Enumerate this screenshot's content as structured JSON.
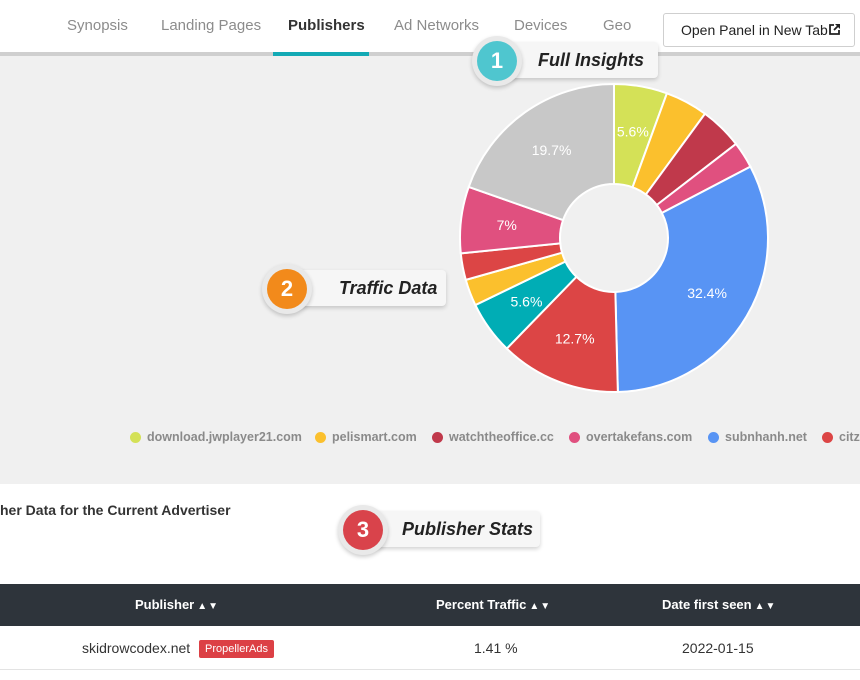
{
  "nav": {
    "tabs": [
      {
        "label": "Synopsis",
        "active": false
      },
      {
        "label": "Landing Pages",
        "active": false
      },
      {
        "label": "Publishers",
        "active": true
      },
      {
        "label": "Ad Networks",
        "active": false
      },
      {
        "label": "Devices",
        "active": false
      },
      {
        "label": "Geo",
        "active": false
      }
    ],
    "open_panel_label": "Open Panel in New Tab",
    "accent_color": "#13aab5"
  },
  "callouts": [
    {
      "number": "1",
      "label": "Full Insights",
      "color": "#4fc6cf"
    },
    {
      "number": "2",
      "label": "Traffic Data",
      "color": "#f28a1b"
    },
    {
      "number": "3",
      "label": "Publisher Stats",
      "color": "#d9434b"
    }
  ],
  "chart_data": {
    "type": "pie",
    "donut": true,
    "slices": [
      {
        "value": 5.6,
        "label": "5.6%",
        "color": "#d4e157"
      },
      {
        "value": 4.5,
        "label": "",
        "color": "#fbc02d"
      },
      {
        "value": 4.5,
        "label": "",
        "color": "#c0394b"
      },
      {
        "value": 2.8,
        "label": "",
        "color": "#e0507f"
      },
      {
        "value": 32.4,
        "label": "32.4%",
        "color": "#5894f4"
      },
      {
        "value": 12.7,
        "label": "12.7%",
        "color": "#dc4545"
      },
      {
        "value": 5.6,
        "label": "5.6%",
        "color": "#00adb5"
      },
      {
        "value": 2.8,
        "label": "",
        "color": "#fbc02d"
      },
      {
        "value": 2.8,
        "label": "",
        "color": "#dc4545"
      },
      {
        "value": 7.0,
        "label": "7%",
        "color": "#e0507f"
      },
      {
        "value": 19.7,
        "label": "19.7%",
        "color": "#c8c8c8"
      }
    ],
    "legend": [
      {
        "name": "download.jwplayer21.com",
        "color": "#d4e157"
      },
      {
        "name": "pelismart.com",
        "color": "#fbc02d"
      },
      {
        "name": "watchtheoffice.cc",
        "color": "#c0394b"
      },
      {
        "name": "overtakefans.com",
        "color": "#e0507f"
      },
      {
        "name": "subnhanh.net",
        "color": "#5894f4"
      },
      {
        "name": "citz",
        "color": "#dc4545"
      }
    ]
  },
  "section": {
    "title": "her Data for the Current Advertiser"
  },
  "table": {
    "columns": [
      "Publisher",
      "Percent Traffic",
      "Date first seen"
    ],
    "sort_glyph": "▲▼",
    "rows": [
      {
        "publisher": "skidrowcodex.net",
        "network": "PropellerAds",
        "percent": "1.41 %",
        "date": "2022-01-15"
      }
    ]
  }
}
